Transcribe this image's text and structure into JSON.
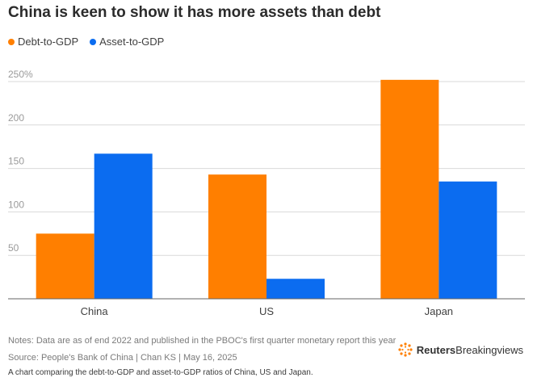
{
  "title": "China is keen to show it has more assets than debt",
  "legend": [
    {
      "label": "Debt-to-GDP",
      "color": "#ff7f00"
    },
    {
      "label": "Asset-to-GDP",
      "color": "#0b6cf0"
    }
  ],
  "chart_data": {
    "type": "bar",
    "categories": [
      "China",
      "US",
      "Japan"
    ],
    "series": [
      {
        "name": "Debt-to-GDP",
        "color": "#ff7f00",
        "values": [
          75,
          143,
          252
        ]
      },
      {
        "name": "Asset-to-GDP",
        "color": "#0b6cf0",
        "values": [
          167,
          23,
          135
        ]
      }
    ],
    "y_ticks": [
      50,
      100,
      150,
      200,
      250
    ],
    "y_tick_labels": [
      "50",
      "100",
      "150",
      "200",
      "250%"
    ],
    "ylim": [
      0,
      250
    ],
    "grid": true
  },
  "footer": {
    "notes": "Notes: Data are as of end 2022 and published in the PBOC's first quarter monetary report this year",
    "source": "Source: People's Bank of China | Chan KS | May 16, 2025",
    "caption": "A chart comparing the debt-to-GDP and asset-to-GDP ratios of China, US and Japan.",
    "logo_brand": "Reuters",
    "logo_product": "Breakingviews"
  }
}
